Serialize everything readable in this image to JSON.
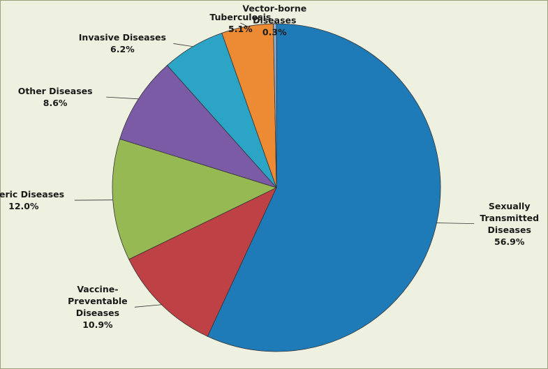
{
  "chart_data": {
    "type": "pie",
    "categories": [
      "Sexually Transmitted Diseases",
      "Vaccine-Preventable Diseases",
      "Enteric Diseases",
      "Other Diseases",
      "Invasive Diseases",
      "Tuberculosis",
      "Vector-borne Diseases"
    ],
    "values": [
      56.9,
      10.9,
      12.0,
      8.6,
      6.2,
      5.1,
      0.3
    ],
    "value_labels": [
      "56.9%",
      "10.9%",
      "12.0%",
      "8.6%",
      "6.2%",
      "5.1%",
      "0.3%"
    ],
    "colors": [
      "#1f7bb8",
      "#be4145",
      "#97b954",
      "#7b5ba6",
      "#2ba4c6",
      "#ed8b35",
      "#8fb0d4"
    ],
    "start": "top",
    "direction": "clockwise"
  }
}
